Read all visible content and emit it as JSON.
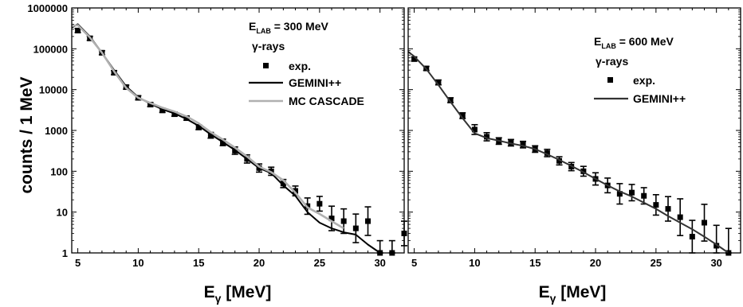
{
  "ylabel": "counts / 1 MeV",
  "chart_data": [
    {
      "type": "scatter",
      "panel": "left",
      "xlabel_main": "E",
      "xlabel_sub": "γ",
      "xlabel_unit": " [MeV]",
      "ylabel": "counts / 1 MeV",
      "xlim": [
        4.5,
        32
      ],
      "ylim": [
        1,
        1000000
      ],
      "yscale": "log",
      "x_ticks": [
        {
          "v": 5,
          "label": "5"
        },
        {
          "v": 10,
          "label": "10"
        },
        {
          "v": 15,
          "label": "15"
        },
        {
          "v": 20,
          "label": "20"
        },
        {
          "v": 25,
          "label": "25"
        },
        {
          "v": 30,
          "label": "30"
        }
      ],
      "y_ticks": [
        {
          "v": 1,
          "label": "1"
        },
        {
          "v": 10,
          "label": "10"
        },
        {
          "v": 100,
          "label": "100"
        },
        {
          "v": 1000,
          "label": "1000"
        },
        {
          "v": 10000,
          "label": "10000"
        },
        {
          "v": 100000,
          "label": "100000"
        },
        {
          "v": 1000000,
          "label": "1000000"
        }
      ],
      "title_line1_main": "E",
      "title_line1_sub": "LAB",
      "title_line1_rest": " = 300 MeV",
      "title_line2": "γ-rays",
      "legend": [
        {
          "label": "exp.",
          "kind": "square",
          "color": "#000000"
        },
        {
          "label": "GEMINI++",
          "kind": "line",
          "color": "#000000"
        },
        {
          "label": "MC CASCADE",
          "kind": "line",
          "color": "#b0b0b0"
        }
      ],
      "series": [
        {
          "name": "exp.",
          "kind": "points",
          "color": "#000000",
          "x": [
            5,
            6,
            7,
            8,
            9,
            10,
            11,
            12,
            13,
            14,
            15,
            16,
            17,
            18,
            19,
            20,
            21,
            22,
            23,
            24,
            25,
            26,
            27,
            28,
            29,
            30,
            31,
            32
          ],
          "y": [
            280000,
            180000,
            80000,
            26000,
            11500,
            6300,
            4300,
            3100,
            2500,
            2000,
            1200,
            760,
            510,
            320,
            200,
            120,
            100,
            50,
            33,
            14,
            16,
            7,
            6,
            4,
            6,
            1,
            1,
            3
          ],
          "err": [
            0.05,
            0.05,
            0.05,
            0.05,
            0.05,
            0.05,
            0.05,
            0.05,
            0.05,
            0.05,
            0.06,
            0.07,
            0.08,
            0.09,
            0.1,
            0.1,
            0.1,
            0.1,
            0.12,
            0.2,
            0.18,
            0.3,
            0.3,
            0.35,
            0.35,
            0.3,
            0.3,
            0.3
          ]
        },
        {
          "name": "GEMINI++",
          "kind": "line",
          "color": "#000000",
          "x": [
            4.5,
            5,
            6,
            7,
            8,
            9,
            10,
            11,
            12,
            13,
            14,
            15,
            16,
            17,
            18,
            19,
            20,
            21,
            22,
            23,
            24,
            25,
            26,
            27,
            28,
            29,
            30
          ],
          "y": [
            330000,
            400000,
            200000,
            80000,
            30000,
            12000,
            6500,
            4500,
            3300,
            2600,
            1900,
            1300,
            800,
            520,
            330,
            200,
            120,
            90,
            45,
            25,
            10,
            5.5,
            4,
            3.2,
            2.8,
            1.6,
            1
          ]
        },
        {
          "name": "MC CASCADE",
          "kind": "line",
          "color": "#b0b0b0",
          "x": [
            4.5,
            5,
            6,
            7,
            8,
            9,
            10,
            11,
            12,
            13,
            14,
            15,
            16,
            17,
            18,
            19,
            20,
            21,
            22,
            23,
            24,
            25,
            26,
            27
          ],
          "y": [
            360000,
            380000,
            190000,
            80000,
            28000,
            11000,
            6300,
            4700,
            3600,
            2900,
            2200,
            1500,
            900,
            600,
            380,
            230,
            130,
            95,
            60,
            30,
            13,
            9,
            6,
            4
          ]
        }
      ]
    },
    {
      "type": "scatter",
      "panel": "right",
      "xlabel_main": "E",
      "xlabel_sub": "γ",
      "xlabel_unit": " [MeV]",
      "xlim": [
        4.5,
        32
      ],
      "ylim": [
        1,
        1000000
      ],
      "yscale": "log",
      "x_ticks": [
        {
          "v": 5,
          "label": "5"
        },
        {
          "v": 10,
          "label": "10"
        },
        {
          "v": 15,
          "label": "15"
        },
        {
          "v": 20,
          "label": "20"
        },
        {
          "v": 25,
          "label": "25"
        },
        {
          "v": 30,
          "label": "30"
        }
      ],
      "y_ticks": [
        {
          "v": 1,
          "label": ""
        },
        {
          "v": 10,
          "label": ""
        },
        {
          "v": 100,
          "label": ""
        },
        {
          "v": 1000,
          "label": ""
        },
        {
          "v": 10000,
          "label": ""
        },
        {
          "v": 100000,
          "label": ""
        },
        {
          "v": 1000000,
          "label": ""
        }
      ],
      "title_line1_main": "E",
      "title_line1_sub": "LAB",
      "title_line1_rest": " = 600 MeV",
      "title_line2": "γ-rays",
      "legend": [
        {
          "label": "exp.",
          "kind": "square",
          "color": "#000000"
        },
        {
          "label": "GEMINI++",
          "kind": "line",
          "color": "#333333"
        }
      ],
      "series": [
        {
          "name": "exp.",
          "kind": "points",
          "color": "#000000",
          "x": [
            5,
            6,
            7,
            8,
            9,
            10,
            11,
            12,
            13,
            14,
            15,
            16,
            17,
            18,
            19,
            20,
            21,
            22,
            23,
            24,
            25,
            26,
            27,
            28,
            29,
            30,
            31
          ],
          "y": [
            56000,
            33000,
            15000,
            5500,
            2300,
            1050,
            700,
            550,
            500,
            450,
            350,
            280,
            180,
            130,
            100,
            65,
            45,
            28,
            30,
            25,
            15,
            12,
            7.5,
            2.5,
            5.5,
            1.5,
            1
          ],
          "err": [
            0.05,
            0.05,
            0.06,
            0.06,
            0.07,
            0.12,
            0.1,
            0.08,
            0.08,
            0.08,
            0.08,
            0.09,
            0.1,
            0.1,
            0.12,
            0.15,
            0.18,
            0.25,
            0.2,
            0.2,
            0.25,
            0.3,
            0.45,
            0.4,
            0.45,
            0.5,
            0.6
          ]
        },
        {
          "name": "GEMINI++",
          "kind": "line",
          "color": "#333333",
          "x": [
            4.5,
            5,
            6,
            7,
            8,
            9,
            10,
            11,
            12,
            13,
            14,
            15,
            16,
            17,
            18,
            19,
            20,
            21,
            22,
            23,
            24,
            25,
            26,
            27,
            28,
            29,
            30,
            31
          ],
          "y": [
            85000,
            65000,
            32000,
            13000,
            5000,
            2000,
            850,
            650,
            560,
            480,
            420,
            350,
            260,
            190,
            135,
            95,
            65,
            45,
            32,
            24,
            17,
            12,
            8,
            5.5,
            3.8,
            2.5,
            1.6,
            1
          ]
        }
      ]
    }
  ]
}
